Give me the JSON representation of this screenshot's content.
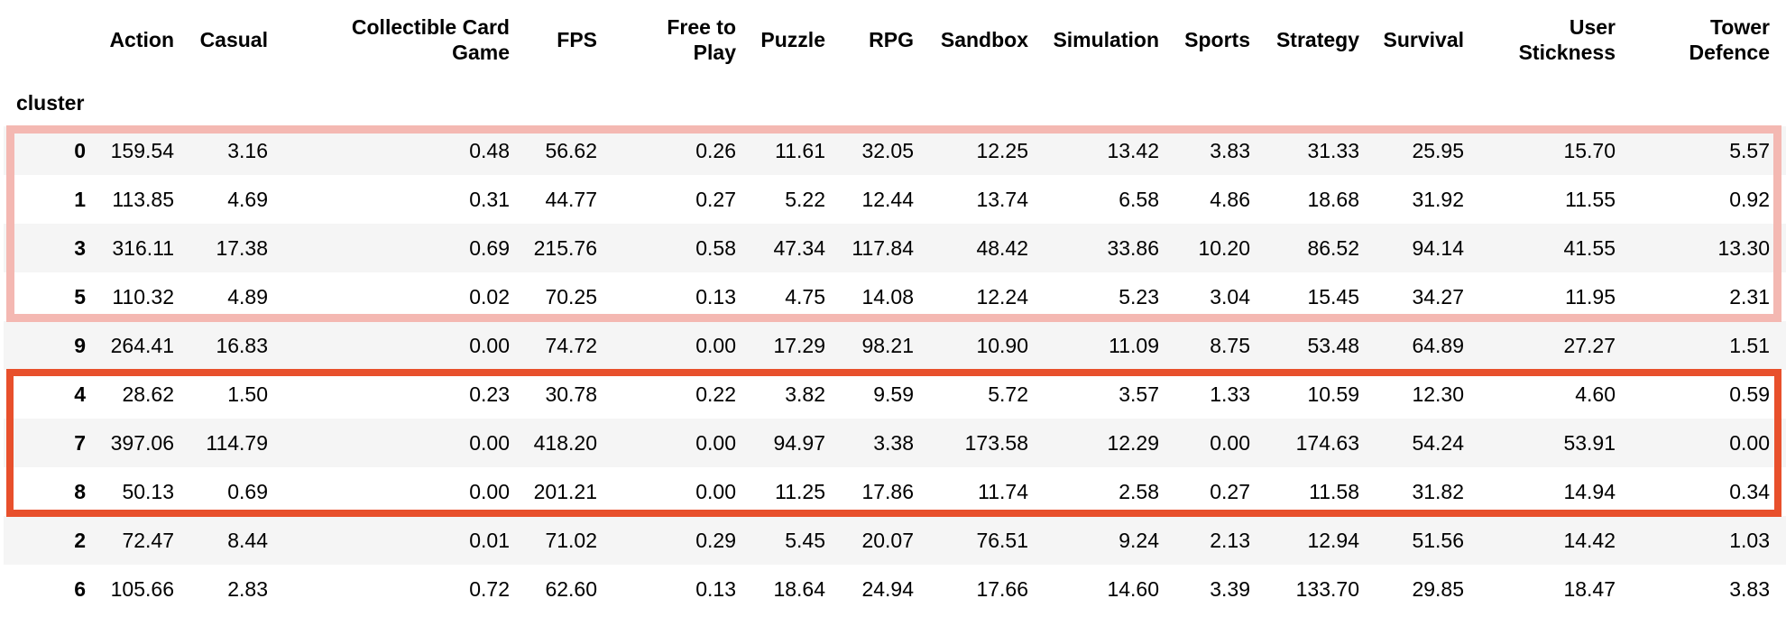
{
  "table": {
    "index_name": "cluster",
    "columns": [
      [
        "Action"
      ],
      [
        "Casual"
      ],
      [
        "Collectible Card",
        "Game"
      ],
      [
        "FPS"
      ],
      [
        "Free to",
        "Play"
      ],
      [
        "Puzzle"
      ],
      [
        "RPG"
      ],
      [
        "Sandbox"
      ],
      [
        "Simulation"
      ],
      [
        "Sports"
      ],
      [
        "Strategy"
      ],
      [
        "Survival"
      ],
      [
        "User",
        "Stickness"
      ],
      [
        "Tower",
        "Defence"
      ]
    ],
    "rows": [
      {
        "cluster": "0",
        "values": [
          "159.54",
          "3.16",
          "0.48",
          "56.62",
          "0.26",
          "11.61",
          "32.05",
          "12.25",
          "13.42",
          "3.83",
          "31.33",
          "25.95",
          "15.70",
          "5.57"
        ]
      },
      {
        "cluster": "1",
        "values": [
          "113.85",
          "4.69",
          "0.31",
          "44.77",
          "0.27",
          "5.22",
          "12.44",
          "13.74",
          "6.58",
          "4.86",
          "18.68",
          "31.92",
          "11.55",
          "0.92"
        ]
      },
      {
        "cluster": "3",
        "values": [
          "316.11",
          "17.38",
          "0.69",
          "215.76",
          "0.58",
          "47.34",
          "117.84",
          "48.42",
          "33.86",
          "10.20",
          "86.52",
          "94.14",
          "41.55",
          "13.30"
        ]
      },
      {
        "cluster": "5",
        "values": [
          "110.32",
          "4.89",
          "0.02",
          "70.25",
          "0.13",
          "4.75",
          "14.08",
          "12.24",
          "5.23",
          "3.04",
          "15.45",
          "34.27",
          "11.95",
          "2.31"
        ]
      },
      {
        "cluster": "9",
        "values": [
          "264.41",
          "16.83",
          "0.00",
          "74.72",
          "0.00",
          "17.29",
          "98.21",
          "10.90",
          "11.09",
          "8.75",
          "53.48",
          "64.89",
          "27.27",
          "1.51"
        ]
      },
      {
        "cluster": "4",
        "values": [
          "28.62",
          "1.50",
          "0.23",
          "30.78",
          "0.22",
          "3.82",
          "9.59",
          "5.72",
          "3.57",
          "1.33",
          "10.59",
          "12.30",
          "4.60",
          "0.59"
        ]
      },
      {
        "cluster": "7",
        "values": [
          "397.06",
          "114.79",
          "0.00",
          "418.20",
          "0.00",
          "94.97",
          "3.38",
          "173.58",
          "12.29",
          "0.00",
          "174.63",
          "54.24",
          "53.91",
          "0.00"
        ]
      },
      {
        "cluster": "8",
        "values": [
          "50.13",
          "0.69",
          "0.00",
          "201.21",
          "0.00",
          "11.25",
          "17.86",
          "11.74",
          "2.58",
          "0.27",
          "11.58",
          "31.82",
          "14.94",
          "0.34"
        ]
      },
      {
        "cluster": "2",
        "values": [
          "72.47",
          "8.44",
          "0.01",
          "71.02",
          "0.29",
          "5.45",
          "20.07",
          "76.51",
          "9.24",
          "2.13",
          "12.94",
          "51.56",
          "14.42",
          "1.03"
        ]
      },
      {
        "cluster": "6",
        "values": [
          "105.66",
          "2.83",
          "0.72",
          "62.60",
          "0.13",
          "18.64",
          "24.94",
          "17.66",
          "14.60",
          "3.39",
          "133.70",
          "29.85",
          "18.47",
          "3.83"
        ]
      }
    ]
  },
  "highlights": [
    {
      "rows": [
        "0",
        "1",
        "3",
        "5"
      ],
      "color": "#f4b8b2"
    },
    {
      "rows": [
        "4",
        "7",
        "8"
      ],
      "color": "#e8502c"
    }
  ]
}
